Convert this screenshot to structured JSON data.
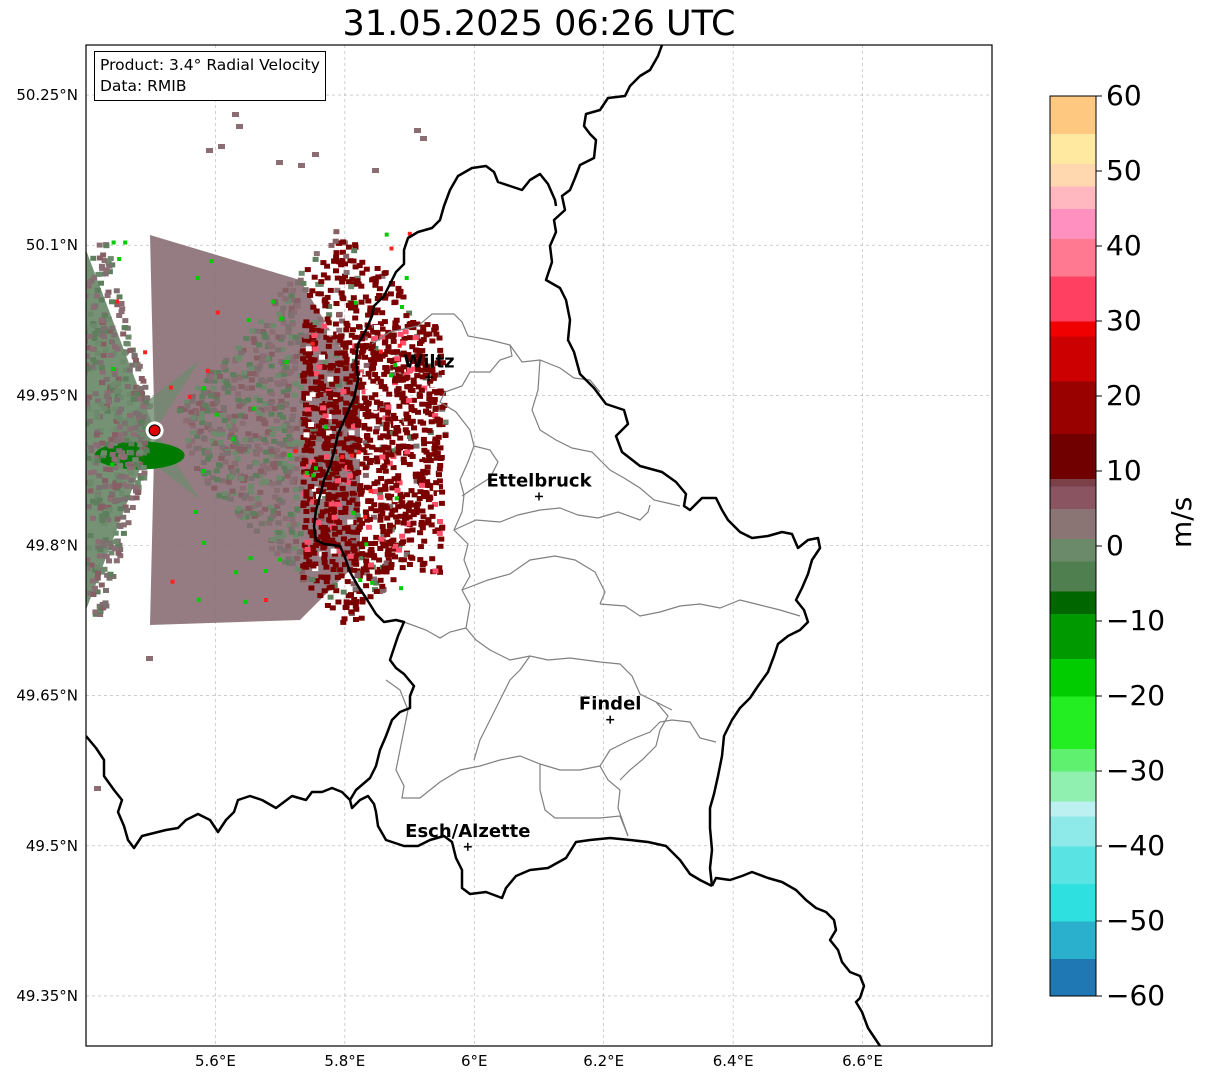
{
  "title": "31.05.2025 06:26 UTC",
  "info_box": {
    "product": "Product: 3.4° Radial Velocity",
    "data": "Data: RMIB"
  },
  "map": {
    "lon_range": [
      5.4,
      6.8
    ],
    "lat_range": [
      49.3,
      50.3
    ],
    "x_ticks": [
      {
        "value": 5.6,
        "label": "5.6°E"
      },
      {
        "value": 5.8,
        "label": "5.8°E"
      },
      {
        "value": 6.0,
        "label": "6°E"
      },
      {
        "value": 6.2,
        "label": "6.2°E"
      },
      {
        "value": 6.4,
        "label": "6.4°E"
      },
      {
        "value": 6.6,
        "label": "6.6°E"
      }
    ],
    "y_ticks": [
      {
        "value": 50.25,
        "label": "50.25°N"
      },
      {
        "value": 50.1,
        "label": "50.1°N"
      },
      {
        "value": 49.95,
        "label": "49.95°N"
      },
      {
        "value": 49.8,
        "label": "49.8°N"
      },
      {
        "value": 49.65,
        "label": "49.65°N"
      },
      {
        "value": 49.5,
        "label": "49.5°N"
      },
      {
        "value": 49.35,
        "label": "49.35°N"
      }
    ],
    "grid": true,
    "cities": [
      {
        "name": "Wiltz",
        "lon": 5.93,
        "lat": 49.968
      },
      {
        "name": "Ettelbruck",
        "lon": 6.1,
        "lat": 49.849
      },
      {
        "name": "Findel",
        "lon": 6.21,
        "lat": 49.626
      },
      {
        "name": "Esch/Alzette",
        "lon": 5.99,
        "lat": 49.499
      }
    ],
    "radar_site": {
      "lon": 5.506,
      "lat": 49.915
    }
  },
  "colorbar": {
    "label": "m/s",
    "min": -60,
    "max": 60,
    "ticks": [
      "60",
      "50",
      "40",
      "30",
      "20",
      "10",
      "0",
      "−10",
      "−20",
      "−30",
      "−40",
      "−50",
      "−60"
    ],
    "tick_values": [
      60,
      50,
      40,
      30,
      20,
      10,
      0,
      -10,
      -20,
      -30,
      -40,
      -50,
      -60
    ]
  },
  "colors": {
    "border": "#000000",
    "canton_lines": "#808080",
    "radar_site": "#e00000"
  }
}
